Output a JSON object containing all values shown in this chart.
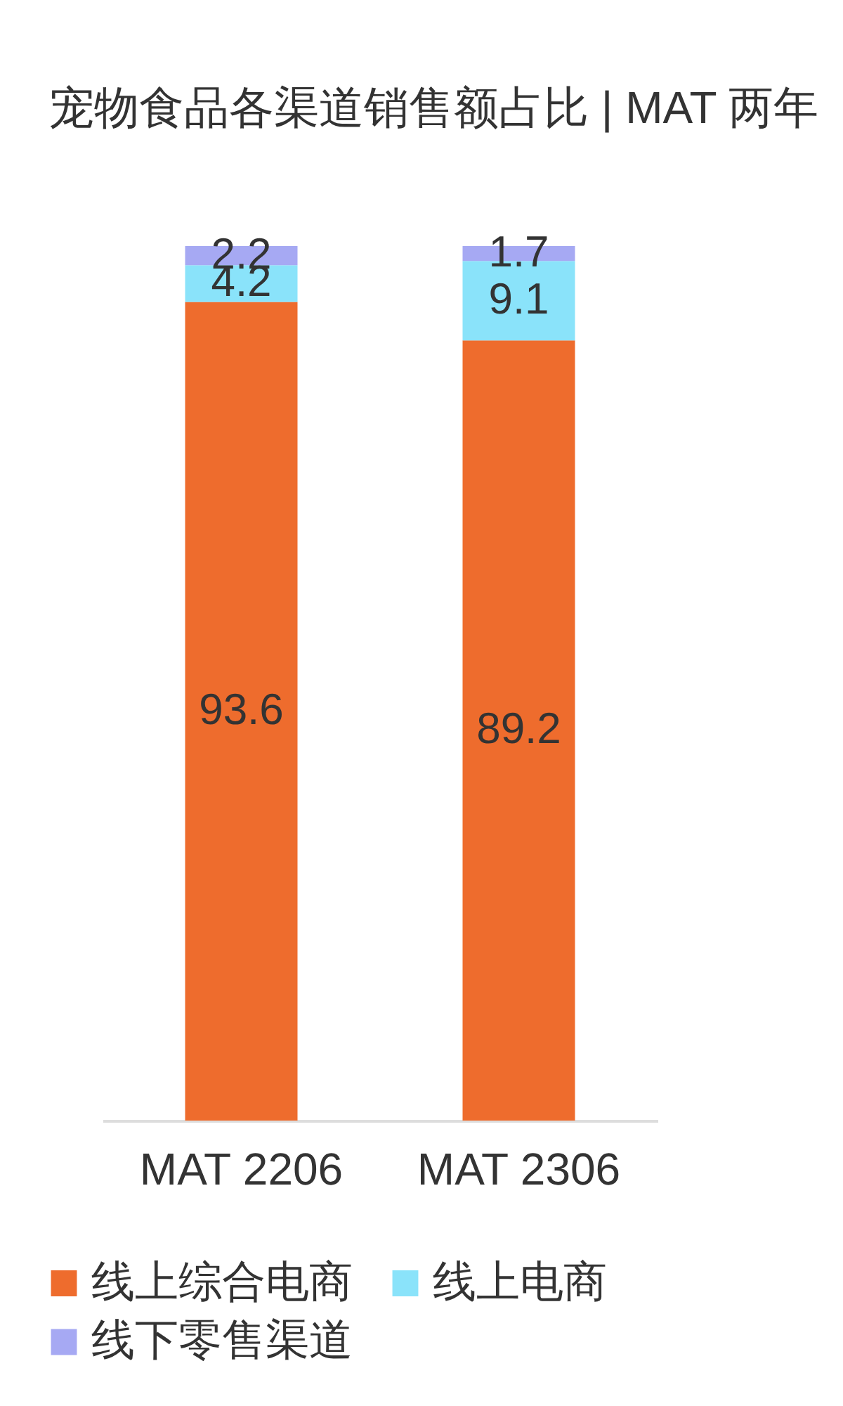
{
  "chart_data": {
    "type": "bar",
    "title": "宠物食品各渠道销售额占比 | MAT 两年",
    "categories": [
      "MAT 2206",
      "MAT 2306"
    ],
    "stacked": true,
    "series": [
      {
        "name": "线上综合电商",
        "color": "#ee6c2d",
        "values": [
          93.6,
          89.2
        ]
      },
      {
        "name": "线上电商",
        "color": "#8ae3fa",
        "values": [
          4.2,
          9.1
        ]
      },
      {
        "name": "线下零售渠道",
        "color": "#a6a9f3",
        "values": [
          2.2,
          1.7
        ]
      }
    ],
    "data_labels": true,
    "legend": "bottom",
    "tick_labels": "x"
  }
}
